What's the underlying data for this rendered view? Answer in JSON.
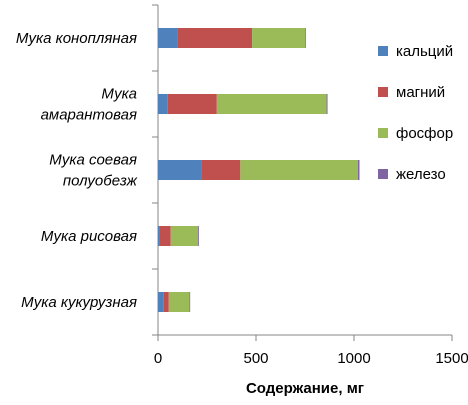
{
  "chart_data": {
    "type": "bar",
    "orientation": "horizontal",
    "stacked": true,
    "categories": [
      [
        "Мука конопляная"
      ],
      [
        "Мука",
        "амарантовая"
      ],
      [
        "Мука соевая",
        "полуобезж"
      ],
      [
        "Мука рисовая"
      ],
      [
        "Мука кукурузная"
      ]
    ],
    "series": [
      {
        "name": "кальций",
        "color": "#4F81BD",
        "values": [
          100,
          50,
          220,
          10,
          30
        ]
      },
      {
        "name": "магний",
        "color": "#C0504D",
        "values": [
          380,
          250,
          200,
          55,
          25
        ]
      },
      {
        "name": "фосфор",
        "color": "#9BBB59",
        "values": [
          270,
          560,
          600,
          140,
          105
        ]
      },
      {
        "name": "железо",
        "color": "#8064A2",
        "values": [
          3,
          5,
          8,
          1,
          2
        ]
      }
    ],
    "xlabel": "Содержание, мг",
    "xlim": [
      0,
      1500
    ],
    "xticks": [
      0,
      500,
      1000,
      1500
    ],
    "grid": false,
    "legend_position": "right"
  }
}
